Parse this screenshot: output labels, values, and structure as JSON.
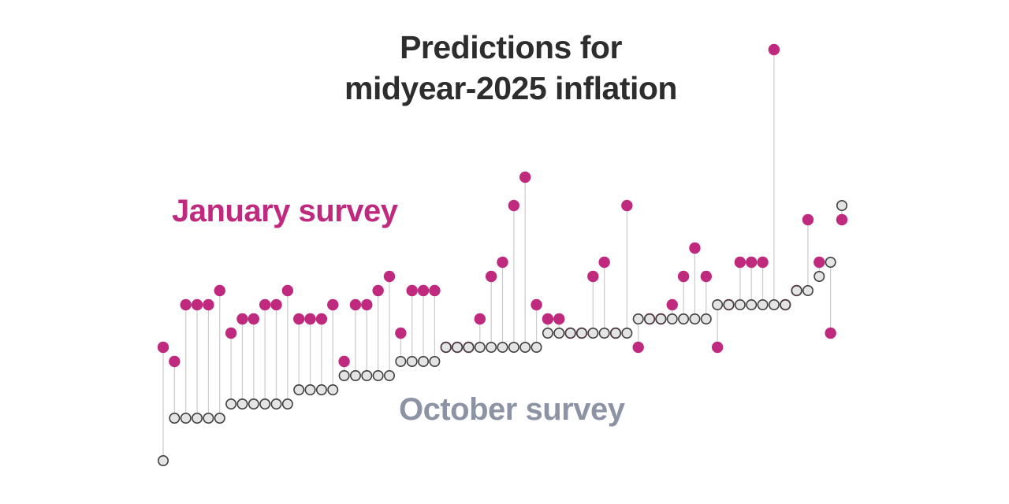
{
  "title": {
    "line1": "Predictions for",
    "line2": "midyear-2025 inflation"
  },
  "labels": {
    "january": "January survey",
    "october": "October survey"
  },
  "colors": {
    "title_text": "#2d2d2d",
    "january": "#bf2a7e",
    "october_fill": "#e4e4e4",
    "october_stroke": "#3f3f3f",
    "october_label": "#8b93a5",
    "connector": "#cccccc",
    "background": "#ffffff"
  },
  "chart_data": {
    "type": "scatter",
    "subtype": "dumbbell",
    "title": "Predictions for midyear-2025 inflation",
    "xlabel": "",
    "ylabel": "",
    "legend_position": "inline-labels",
    "grid": false,
    "axes_visible": false,
    "ylim": [
      1.4,
      4.6
    ],
    "x_description": "individual survey respondents, sorted by October survey value",
    "series": [
      {
        "name": "October survey",
        "values": [
          1.5,
          1.8,
          1.8,
          1.8,
          1.8,
          1.8,
          1.9,
          1.9,
          1.9,
          1.9,
          1.9,
          1.9,
          2.0,
          2.0,
          2.0,
          2.0,
          2.1,
          2.1,
          2.1,
          2.1,
          2.1,
          2.2,
          2.2,
          2.2,
          2.2,
          2.3,
          2.3,
          2.3,
          2.3,
          2.3,
          2.3,
          2.3,
          2.3,
          2.3,
          2.4,
          2.4,
          2.4,
          2.4,
          2.4,
          2.4,
          2.4,
          2.4,
          2.5,
          2.5,
          2.5,
          2.5,
          2.5,
          2.5,
          2.5,
          2.6,
          2.6,
          2.6,
          2.6,
          2.6,
          2.6,
          2.6,
          2.7,
          2.7,
          2.8,
          2.9,
          3.3
        ]
      },
      {
        "name": "January survey",
        "values": [
          2.3,
          2.2,
          2.6,
          2.6,
          2.6,
          2.7,
          2.4,
          2.5,
          2.5,
          2.6,
          2.6,
          2.7,
          2.5,
          2.5,
          2.5,
          2.6,
          2.2,
          2.6,
          2.6,
          2.7,
          2.8,
          2.4,
          2.7,
          2.7,
          2.7,
          2.3,
          2.3,
          2.3,
          2.5,
          2.8,
          2.9,
          3.3,
          3.5,
          2.6,
          2.5,
          2.5,
          2.4,
          2.4,
          2.8,
          2.9,
          2.4,
          3.3,
          2.3,
          2.5,
          2.5,
          2.6,
          2.8,
          3.0,
          2.8,
          2.3,
          2.6,
          2.9,
          2.9,
          2.9,
          4.4,
          2.6,
          2.7,
          3.2,
          2.9,
          2.4,
          3.2
        ]
      }
    ]
  }
}
